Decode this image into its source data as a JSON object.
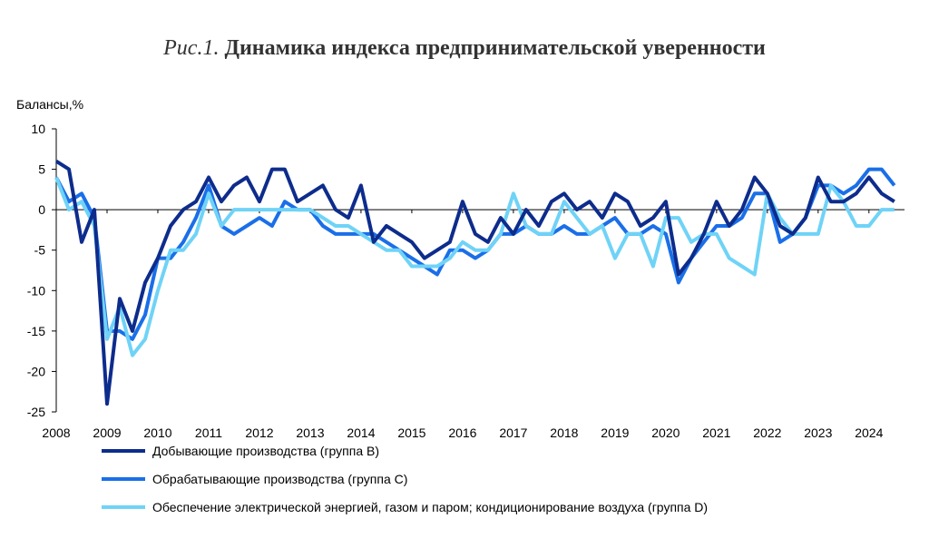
{
  "chart_data": {
    "type": "line",
    "figure_label": "Рис.1.",
    "title": "Динамика индекса предпринимательской уверенности",
    "y_label": "Балансы,%",
    "x": [
      2008,
      2008.25,
      2008.5,
      2008.75,
      2009,
      2009.25,
      2009.5,
      2009.75,
      2010,
      2010.25,
      2010.5,
      2010.75,
      2011,
      2011.25,
      2011.5,
      2011.75,
      2012,
      2012.25,
      2012.5,
      2012.75,
      2013,
      2013.25,
      2013.5,
      2013.75,
      2014,
      2014.25,
      2014.5,
      2014.75,
      2015,
      2015.25,
      2015.5,
      2015.75,
      2016,
      2016.25,
      2016.5,
      2016.75,
      2017,
      2017.25,
      2017.5,
      2017.75,
      2018,
      2018.25,
      2018.5,
      2018.75,
      2019,
      2019.25,
      2019.5,
      2019.75,
      2020,
      2020.25,
      2020.5,
      2020.75,
      2021,
      2021.25,
      2021.5,
      2021.75,
      2022,
      2022.25,
      2022.5,
      2022.75,
      2023,
      2023.25,
      2023.5,
      2023.75,
      2024,
      2024.25,
      2024.5
    ],
    "series": [
      {
        "name": "Добывающие производства (группа B)",
        "color": "#0d2c8c",
        "values": [
          6,
          5,
          -4,
          0,
          -24,
          -11,
          -15,
          -9,
          -6,
          -2,
          0,
          1,
          4,
          1,
          3,
          4,
          1,
          5,
          5,
          1,
          2,
          3,
          0,
          -1,
          3,
          -4,
          -2,
          -3,
          -4,
          -6,
          -5,
          -4,
          1,
          -3,
          -4,
          -1,
          -3,
          0,
          -2,
          1,
          2,
          0,
          1,
          -1,
          2,
          1,
          -2,
          -1,
          1,
          -8,
          -6,
          -3,
          1,
          -2,
          0,
          4,
          2,
          -2,
          -3,
          -1,
          4,
          1,
          1,
          2,
          4,
          2,
          1
        ]
      },
      {
        "name": "Обрабатывающие производства (группа C)",
        "color": "#1a6fe8",
        "values": [
          4,
          1,
          2,
          -1,
          -15,
          -15,
          -16,
          -13,
          -6,
          -6,
          -4,
          -1,
          3,
          -2,
          -3,
          -2,
          -1,
          -2,
          1,
          0,
          0,
          -2,
          -3,
          -3,
          -3,
          -3,
          -4,
          -5,
          -6,
          -7,
          -8,
          -5,
          -5,
          -6,
          -5,
          -3,
          -3,
          -2,
          -3,
          -3,
          -2,
          -3,
          -3,
          -2,
          -1,
          -3,
          -3,
          -2,
          -3,
          -9,
          -6,
          -4,
          -2,
          -2,
          -1,
          2,
          2,
          -4,
          -3,
          -1,
          3,
          3,
          2,
          3,
          5,
          5,
          3
        ]
      },
      {
        "name": "Обеспечение электрической энергией, газом и паром; кондиционирование воздуха (группа D)",
        "color": "#6fd3f7",
        "values": [
          4,
          0,
          1,
          -2,
          -16,
          -12,
          -18,
          -16,
          -10,
          -5,
          -5,
          -3,
          2,
          -2,
          0,
          0,
          0,
          0,
          0,
          0,
          0,
          -1,
          -2,
          -2,
          -3,
          -4,
          -5,
          -5,
          -7,
          -7,
          -7,
          -6,
          -4,
          -5,
          -5,
          -3,
          2,
          -2,
          -3,
          -3,
          1,
          -1,
          -3,
          -2,
          -6,
          -3,
          -3,
          -7,
          -1,
          -1,
          -4,
          -3,
          -3,
          -6,
          -7,
          -8,
          2,
          -1,
          -3,
          -3,
          -3,
          3,
          1,
          -2,
          -2,
          0,
          0
        ]
      }
    ],
    "xlim": [
      2008,
      2024.7
    ],
    "xticks": [
      2008,
      2009,
      2010,
      2011,
      2012,
      2013,
      2014,
      2015,
      2016,
      2017,
      2018,
      2019,
      2020,
      2021,
      2022,
      2023,
      2024
    ],
    "ylim": [
      -25,
      10
    ],
    "yticks": [
      10,
      5,
      0,
      -5,
      -10,
      -15,
      -20,
      -25
    ]
  }
}
